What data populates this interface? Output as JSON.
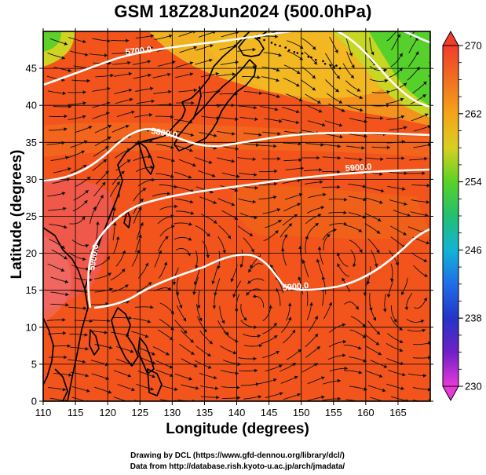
{
  "title": "GSM 18Z28Jun2024 (500.0hPa)",
  "xlabel": "Longitude (degrees)",
  "ylabel": "Latitude (degrees)",
  "credits": [
    "Drawing by DCL (https://www.gfd-dennou.org/library/dcl/)",
    "Data from http://database.rish.kyoto-u.ac.jp/arch/jmadata/"
  ],
  "map": {
    "lon_range": [
      110,
      170
    ],
    "lat_range": [
      0,
      50
    ],
    "x_ticks": [
      "110",
      "115",
      "120",
      "125",
      "130",
      "135",
      "140",
      "145",
      "150",
      "155",
      "160",
      "165"
    ],
    "y_ticks": [
      "0",
      "5",
      "10",
      "15",
      "20",
      "25",
      "30",
      "35",
      "40",
      "45"
    ],
    "grid": true,
    "contour_labels": [
      "5700.0",
      "5800.0",
      "5900.0",
      "5900.0",
      "5900.0"
    ]
  },
  "colorbar": {
    "min": 230,
    "max": 270,
    "labels": [
      "270",
      "262",
      "254",
      "246",
      "238",
      "230"
    ]
  },
  "colors": {
    "warm": "#f03a1a",
    "mid": "#f5a020",
    "cool": "#36d21e",
    "contour": "#ffffff"
  }
}
